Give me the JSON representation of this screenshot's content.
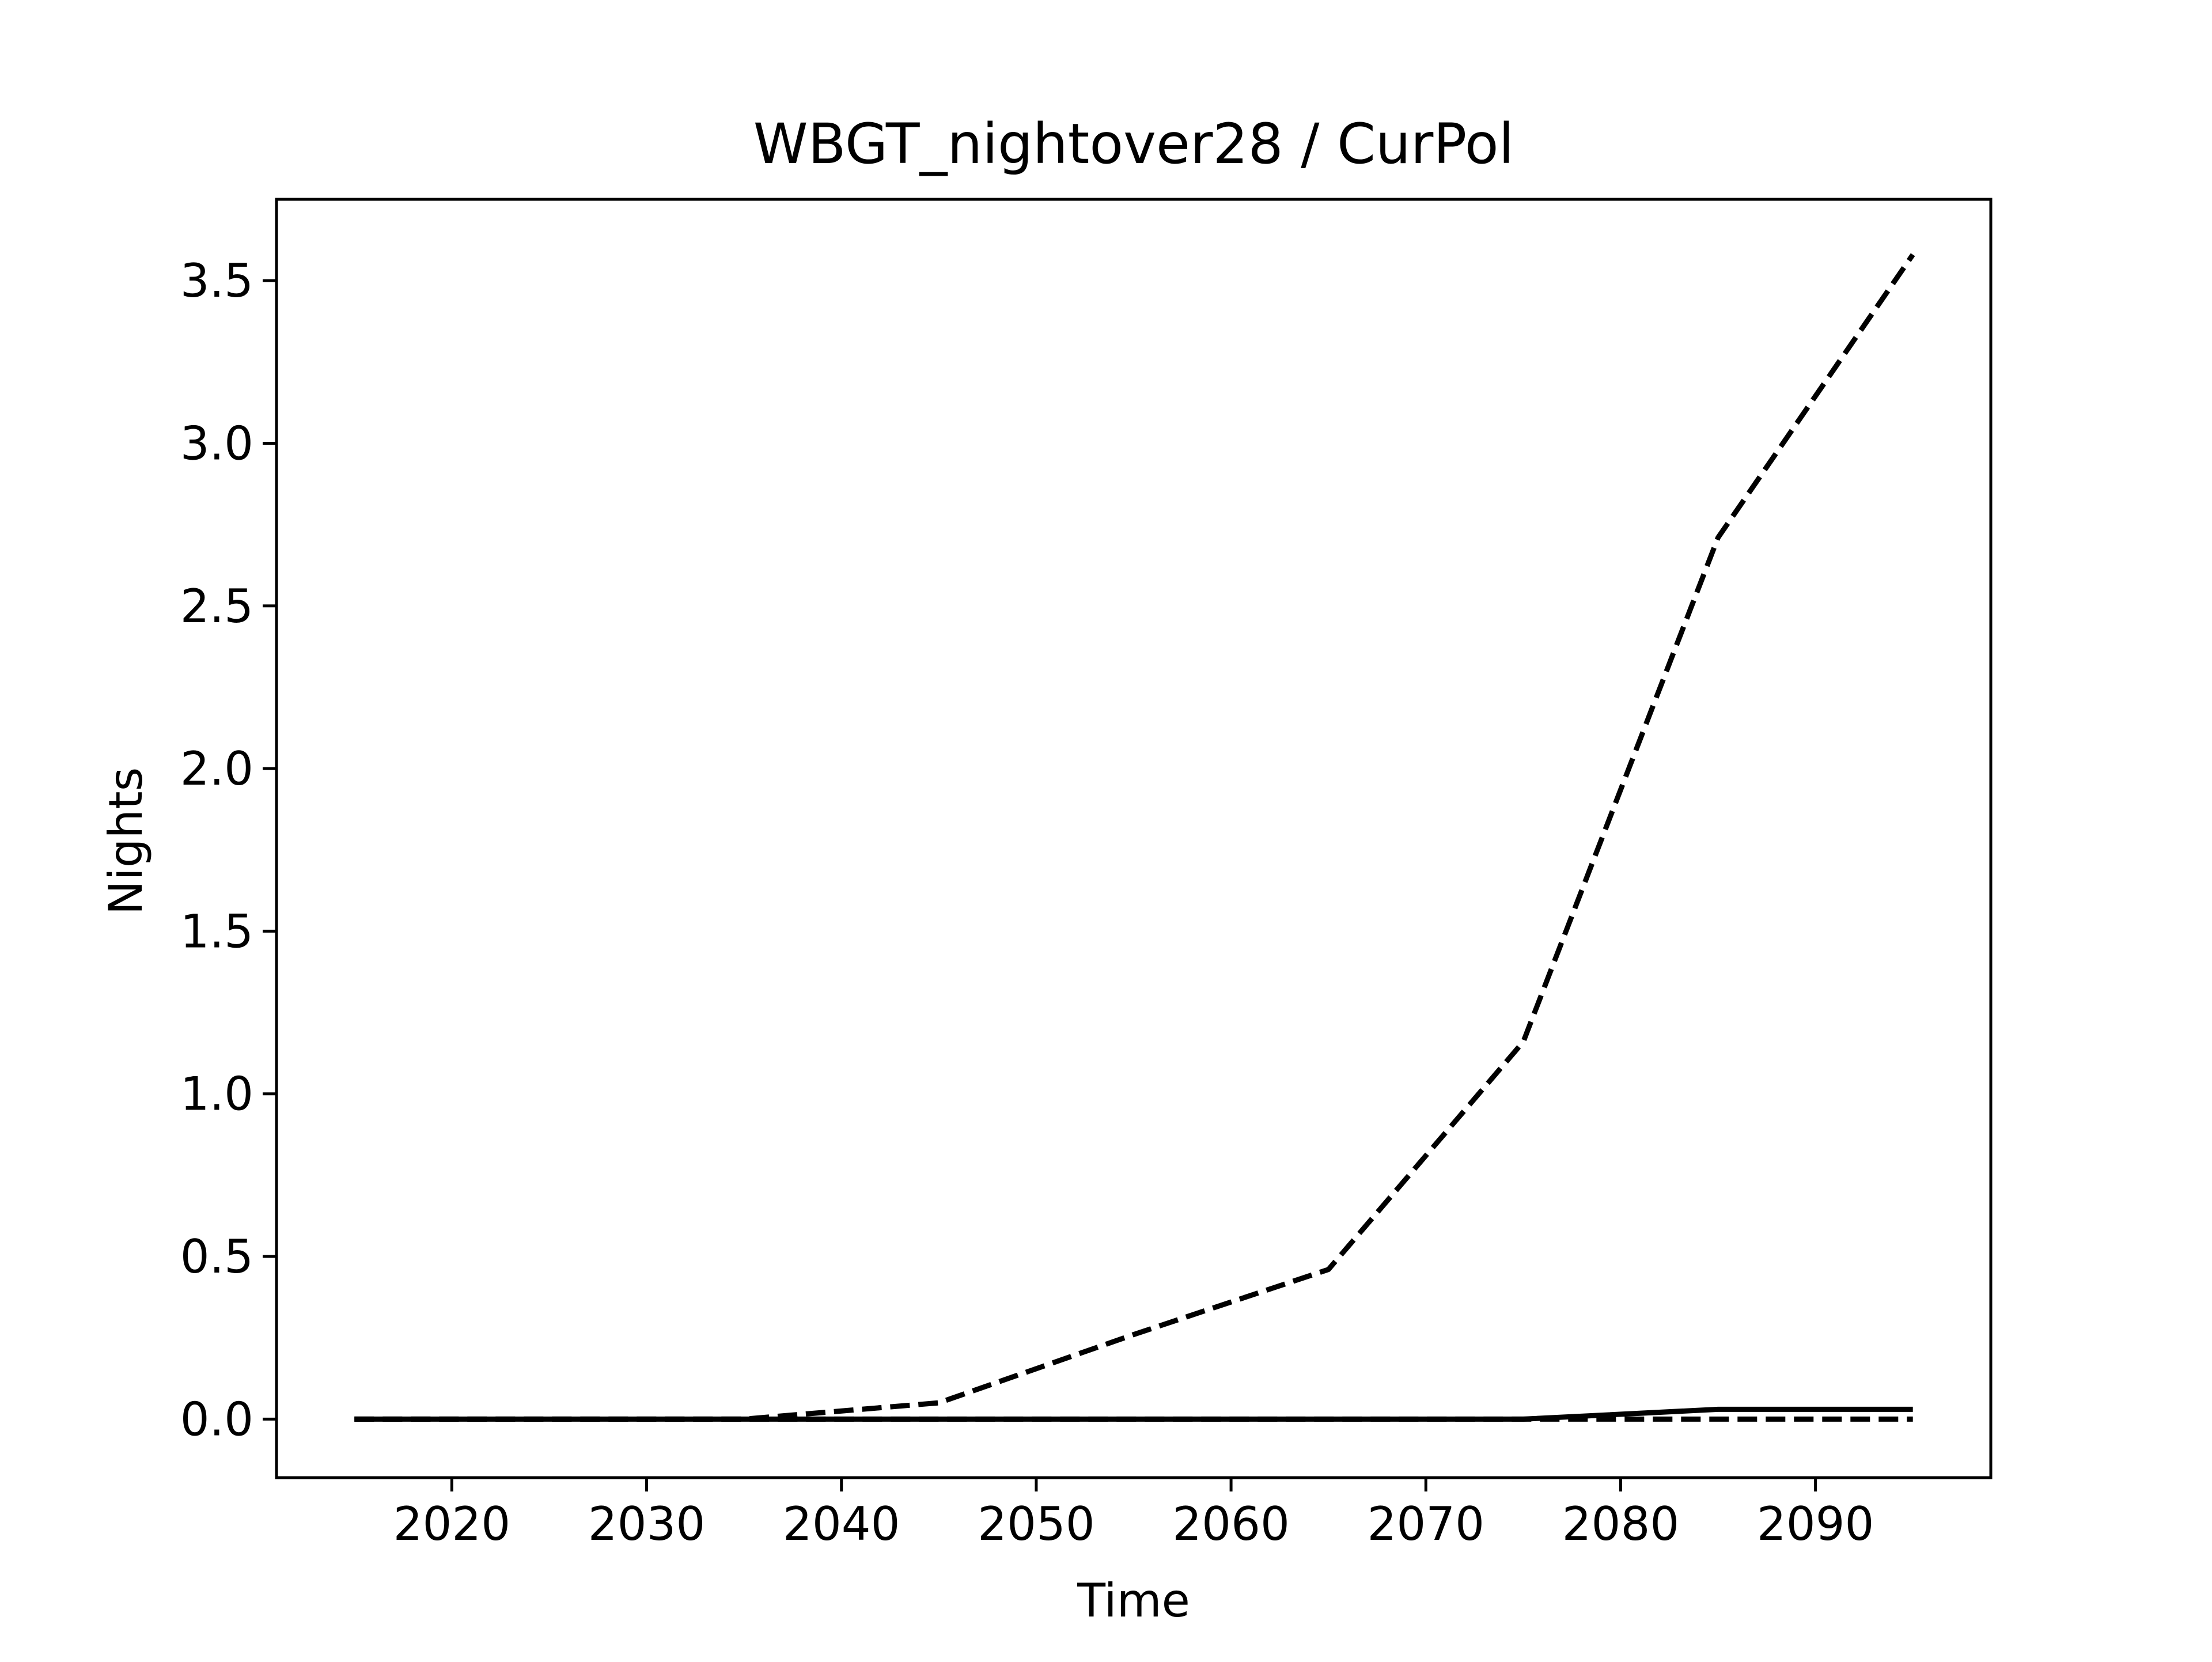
{
  "chart_data": {
    "type": "line",
    "title": "WBGT_nightover28 / CurPol",
    "xlabel": "Time",
    "ylabel": "Nights",
    "xlim": [
      2011,
      2099
    ],
    "ylim": [
      -0.18,
      3.75
    ],
    "xticks": [
      2020,
      2030,
      2040,
      2050,
      2060,
      2070,
      2080,
      2090
    ],
    "xtick_labels": [
      "2020",
      "2030",
      "2040",
      "2050",
      "2060",
      "2070",
      "2080",
      "2090"
    ],
    "yticks": [
      0.0,
      0.5,
      1.0,
      1.5,
      2.0,
      2.5,
      3.0,
      3.5
    ],
    "ytick_labels": [
      "0.0",
      "0.5",
      "1.0",
      "1.5",
      "2.0",
      "2.5",
      "3.0",
      "3.5"
    ],
    "grid": false,
    "legend": "none",
    "x": [
      2015,
      2025,
      2035,
      2045,
      2055,
      2065,
      2075,
      2085,
      2095
    ],
    "series": [
      {
        "style": "dashed",
        "color": "#000000",
        "values": [
          0.0,
          0.0,
          0.0,
          0.05,
          0.26,
          0.46,
          1.16,
          2.71,
          3.58
        ]
      },
      {
        "style": "solid",
        "color": "#000000",
        "values": [
          0.0,
          0.0,
          0.0,
          0.0,
          0.0,
          0.0,
          0.0,
          0.03,
          0.03
        ]
      },
      {
        "style": "dashed",
        "color": "#000000",
        "values": [
          0.0,
          0.0,
          0.0,
          0.0,
          0.0,
          0.0,
          0.0,
          0.0,
          0.0
        ]
      }
    ]
  }
}
